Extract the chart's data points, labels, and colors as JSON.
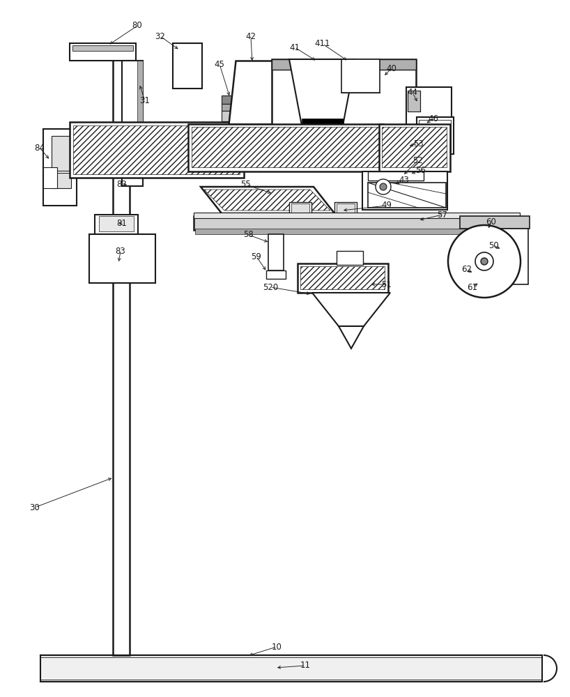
{
  "bg_color": "#ffffff",
  "lc": "#1a1a1a",
  "gray_light": "#c8c8c8",
  "gray_med": "#999999",
  "gray_dark": "#555555",
  "label_fontsize": 8.5,
  "fig_width": 8.18,
  "fig_height": 10.0
}
